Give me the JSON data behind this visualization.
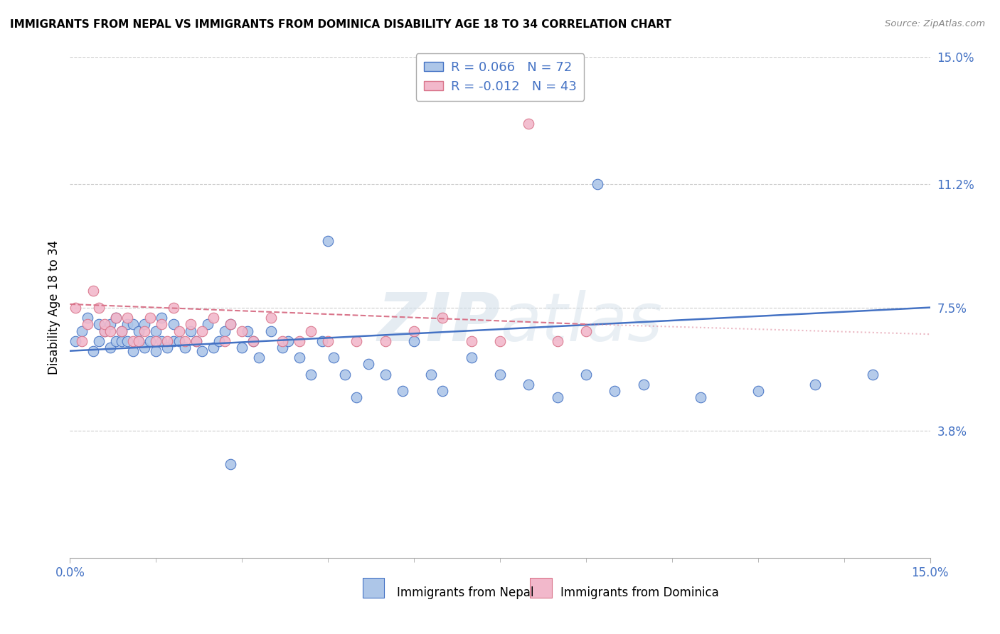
{
  "title": "IMMIGRANTS FROM NEPAL VS IMMIGRANTS FROM DOMINICA DISABILITY AGE 18 TO 34 CORRELATION CHART",
  "source": "Source: ZipAtlas.com",
  "ylabel": "Disability Age 18 to 34",
  "xlim": [
    0.0,
    0.15
  ],
  "ylim": [
    0.0,
    0.15
  ],
  "ytick_labels": [
    "3.8%",
    "7.5%",
    "11.2%",
    "15.0%"
  ],
  "ytick_vals": [
    0.038,
    0.075,
    0.112,
    0.15
  ],
  "nepal_color": "#adc6e8",
  "dominica_color": "#f2b8cb",
  "nepal_line_color": "#4472c4",
  "dominica_line_color": "#d9748a",
  "nepal_R": 0.066,
  "nepal_N": 72,
  "dominica_R": -0.012,
  "dominica_N": 43,
  "nepal_scatter_x": [
    0.001,
    0.002,
    0.003,
    0.004,
    0.005,
    0.005,
    0.006,
    0.007,
    0.007,
    0.008,
    0.008,
    0.009,
    0.009,
    0.01,
    0.01,
    0.011,
    0.011,
    0.012,
    0.012,
    0.013,
    0.013,
    0.014,
    0.015,
    0.015,
    0.016,
    0.016,
    0.017,
    0.018,
    0.018,
    0.019,
    0.02,
    0.021,
    0.022,
    0.023,
    0.024,
    0.025,
    0.026,
    0.027,
    0.028,
    0.03,
    0.031,
    0.032,
    0.033,
    0.035,
    0.037,
    0.038,
    0.04,
    0.042,
    0.044,
    0.046,
    0.048,
    0.05,
    0.052,
    0.055,
    0.058,
    0.06,
    0.063,
    0.065,
    0.07,
    0.075,
    0.08,
    0.085,
    0.09,
    0.095,
    0.1,
    0.11,
    0.12,
    0.13,
    0.14,
    0.092,
    0.045,
    0.028
  ],
  "nepal_scatter_y": [
    0.065,
    0.068,
    0.072,
    0.062,
    0.07,
    0.065,
    0.068,
    0.063,
    0.07,
    0.065,
    0.072,
    0.065,
    0.068,
    0.07,
    0.065,
    0.062,
    0.07,
    0.065,
    0.068,
    0.063,
    0.07,
    0.065,
    0.062,
    0.068,
    0.065,
    0.072,
    0.063,
    0.065,
    0.07,
    0.065,
    0.063,
    0.068,
    0.065,
    0.062,
    0.07,
    0.063,
    0.065,
    0.068,
    0.07,
    0.063,
    0.068,
    0.065,
    0.06,
    0.068,
    0.063,
    0.065,
    0.06,
    0.055,
    0.065,
    0.06,
    0.055,
    0.048,
    0.058,
    0.055,
    0.05,
    0.065,
    0.055,
    0.05,
    0.06,
    0.055,
    0.052,
    0.048,
    0.055,
    0.05,
    0.052,
    0.048,
    0.05,
    0.052,
    0.055,
    0.112,
    0.095,
    0.028
  ],
  "dominica_scatter_x": [
    0.001,
    0.002,
    0.003,
    0.004,
    0.005,
    0.006,
    0.006,
    0.007,
    0.008,
    0.009,
    0.01,
    0.011,
    0.012,
    0.013,
    0.014,
    0.015,
    0.016,
    0.017,
    0.018,
    0.019,
    0.02,
    0.021,
    0.022,
    0.023,
    0.025,
    0.027,
    0.028,
    0.03,
    0.032,
    0.035,
    0.037,
    0.04,
    0.042,
    0.045,
    0.05,
    0.055,
    0.06,
    0.065,
    0.07,
    0.075,
    0.08,
    0.085,
    0.09
  ],
  "dominica_scatter_y": [
    0.075,
    0.065,
    0.07,
    0.08,
    0.075,
    0.068,
    0.07,
    0.068,
    0.072,
    0.068,
    0.072,
    0.065,
    0.065,
    0.068,
    0.072,
    0.065,
    0.07,
    0.065,
    0.075,
    0.068,
    0.065,
    0.07,
    0.065,
    0.068,
    0.072,
    0.065,
    0.07,
    0.068,
    0.065,
    0.072,
    0.065,
    0.065,
    0.068,
    0.065,
    0.065,
    0.065,
    0.068,
    0.072,
    0.065,
    0.065,
    0.13,
    0.065,
    0.068
  ],
  "watermark": "ZIPatlas"
}
